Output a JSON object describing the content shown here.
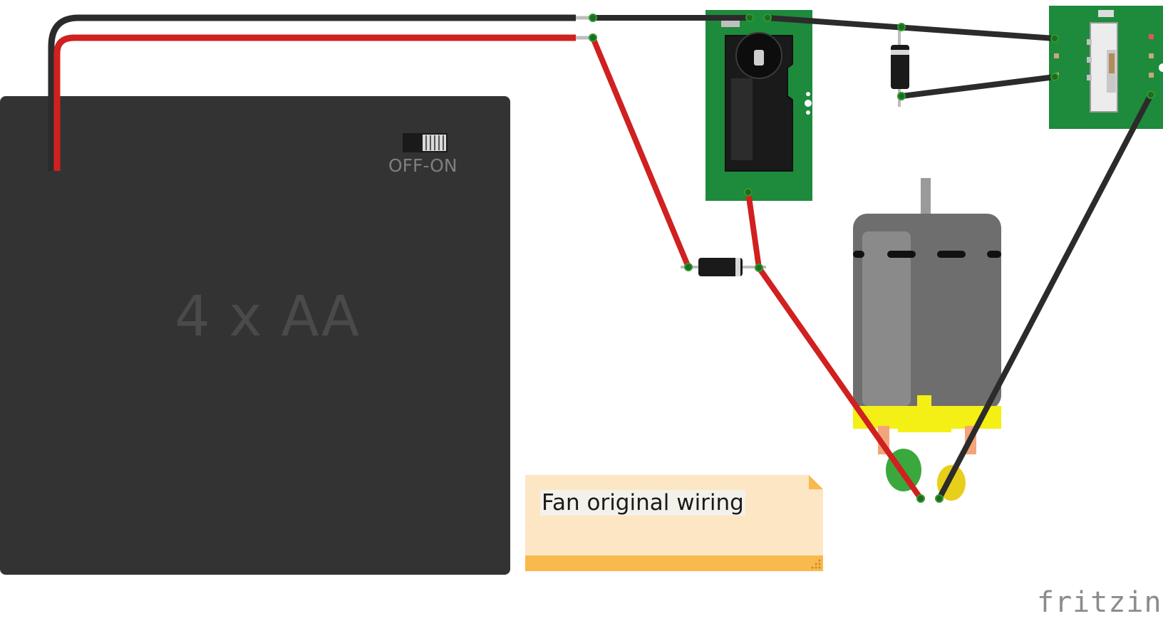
{
  "battery": {
    "label": "4 x AA",
    "switch_label": "OFF-ON"
  },
  "note": {
    "text": "Fan original wiring"
  },
  "brand": {
    "text": "fritzing"
  },
  "colors": {
    "battery_body": "#333333",
    "board_green": "#1e8a3c",
    "wire_red": "#cc2020",
    "wire_black": "#2b2b2b",
    "note_body": "#fde6c4",
    "note_strip": "#f9b94c",
    "motor_body": "#6e6e6e",
    "motor_base": "#f4ef15"
  }
}
